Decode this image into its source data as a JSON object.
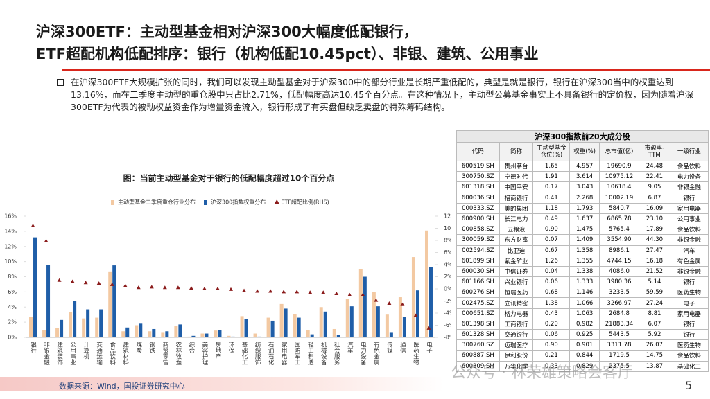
{
  "header": {
    "title_lines": [
      "沪深300ETF：主动型基金相对沪深300大幅度低配银行，",
      "ETF超配机构低配排序：银行（机构低配10.45pct）、非银、建筑、公用事业"
    ]
  },
  "bullet": "在沪深300ETF大规模扩张的同时，我们可以发现主动型基金对于沪深300中的部分行业是长期严重低配的，典型是就是银行，银行在沪深300当中的权重达到13.16%，而在二季度主动型的重仓股中只占比2.71%，低配幅度高达10.45个百分点。在这种情况下，主动型公募基金事实上不具备银行的定价权，因为随着沪深300ETF为代表的被动权益资金作为增量资金流入，银行形成了有买盘但缺乏卖盘的特殊筹码结构。",
  "chart_data": {
    "type": "bar",
    "title": "图：当前主动型基金对于银行的低配幅度超过10个百分点",
    "categories": [
      "银行",
      "非银金融",
      "建筑装饰",
      "公用事业",
      "计算机",
      "交通运输",
      "食品饮料",
      "建筑材料",
      "煤炭",
      "钢铁",
      "商贸零售",
      "农林牧渔",
      "综合",
      "美容护理",
      "房地产",
      "环保",
      "基础化工",
      "纺织服饰",
      "石油石化",
      "家用电器",
      "国防军工",
      "轻工制造",
      "机械设备",
      "社会服务",
      "汽车",
      "电力设备",
      "有色金属",
      "传媒",
      "通信",
      "医药生物",
      "电子"
    ],
    "series": [
      {
        "name": "主动型基金二季度重仓行业分布",
        "color": "#f3c9a2",
        "values": [
          2.7,
          1.0,
          1.2,
          3.3,
          2.5,
          2.6,
          8.7,
          0.8,
          1.6,
          0.8,
          0.6,
          1.5,
          0.1,
          0.5,
          0.9,
          0.2,
          2.8,
          0.5,
          2.6,
          4.4,
          3.1,
          1.0,
          4.0,
          1.1,
          5.1,
          9.0,
          6.0,
          3.0,
          5.3,
          10.6,
          14.1
        ]
      },
      {
        "name": "沪深300指数权重分布",
        "color": "#1f5ea8",
        "values": [
          13.2,
          9.6,
          2.3,
          4.8,
          3.7,
          3.7,
          9.5,
          1.3,
          1.8,
          1.1,
          0.8,
          1.7,
          0.2,
          0.5,
          1.0,
          0.1,
          2.4,
          0.1,
          2.2,
          3.8,
          2.6,
          0.4,
          3.4,
          0.3,
          4.1,
          8.0,
          4.1,
          0.6,
          2.7,
          6.2,
          9.3
        ]
      },
      {
        "name": "ETF超配比例(RHS)",
        "color": "#8b1c1c",
        "axis": "y2",
        "marker": "triangle",
        "values": [
          10.4,
          7.9,
          1.4,
          1.2,
          1.0,
          0.9,
          0.7,
          0.5,
          0.2,
          0.3,
          0.2,
          0.2,
          0.1,
          0.0,
          0.0,
          -0.1,
          -0.3,
          -0.4,
          -0.4,
          -0.5,
          -0.5,
          -0.6,
          -0.6,
          -0.8,
          -1.0,
          -1.0,
          -1.9,
          -2.4,
          -2.6,
          -4.4,
          -6.5
        ]
      }
    ],
    "ylim": [
      0,
      16
    ],
    "yticks": [
      {
        "value": 0,
        "label": "0%"
      },
      {
        "value": 2,
        "label": "2%"
      },
      {
        "value": 4,
        "label": "4%"
      },
      {
        "value": 6,
        "label": "6%"
      },
      {
        "value": 8,
        "label": "8%"
      },
      {
        "value": 10,
        "label": "10%"
      },
      {
        "value": 12,
        "label": "12%"
      },
      {
        "value": 14,
        "label": "14%"
      },
      {
        "value": 16,
        "label": "16%"
      }
    ],
    "y2lim": [
      -8,
      12
    ],
    "y2ticks": [
      {
        "value": -8,
        "label": "-8%"
      },
      {
        "value": -6,
        "label": "-6%"
      },
      {
        "value": -4,
        "label": "-4%"
      },
      {
        "value": -2,
        "label": "-2%"
      },
      {
        "value": 0,
        "label": "0%"
      },
      {
        "value": 2,
        "label": "2%"
      },
      {
        "value": 4,
        "label": "4%"
      },
      {
        "value": 6,
        "label": "6%"
      },
      {
        "value": 8,
        "label": "8%"
      },
      {
        "value": 10,
        "label": "10%"
      },
      {
        "value": 12,
        "label": "12%"
      }
    ],
    "legend": "top",
    "grid": false
  },
  "table": {
    "title": "沪深300指数前20大成分股",
    "header": [
      "代码",
      "简称",
      "主动型基金仓位(%)",
      "权重(%)",
      "总市值(亿)",
      "市盈率-TTM",
      "一级行业"
    ],
    "rows": [
      [
        "600519.SH",
        "贵州茅台",
        "1.65",
        "4.957",
        "19690.9",
        "24.48",
        "食品饮料"
      ],
      [
        "300750.SZ",
        "宁德时代",
        "1.91",
        "3.614",
        "10975.12",
        "22.41",
        "电力设备"
      ],
      [
        "601318.SH",
        "中国平安",
        "0.17",
        "3.043",
        "10618.4",
        "9.05",
        "非银金融"
      ],
      [
        "600036.SH",
        "招商银行",
        "0.41",
        "2.268",
        "10002.19",
        "6.87",
        "银行"
      ],
      [
        "000333.SZ",
        "美的集团",
        "1.18",
        "1.793",
        "5840.7",
        "16.09",
        "家用电器"
      ],
      [
        "600900.SH",
        "长江电力",
        "0.49",
        "1.637",
        "6865.78",
        "23.10",
        "公用事业"
      ],
      [
        "000858.SZ",
        "五粮液",
        "0.90",
        "1.475",
        "5765.4",
        "17.89",
        "食品饮料"
      ],
      [
        "300059.SZ",
        "东方财富",
        "0.07",
        "1.409",
        "3554.90",
        "44.30",
        "非银金融"
      ],
      [
        "002594.SZ",
        "比亚迪",
        "0.67",
        "1.358",
        "8986.1",
        "27.47",
        "汽车"
      ],
      [
        "601899.SH",
        "紫金矿业",
        "1.26",
        "1.355",
        "4744.15",
        "16.18",
        "有色金属"
      ],
      [
        "600030.SH",
        "中信证券",
        "0.04",
        "1.338",
        "4086.0",
        "21.52",
        "非银金融"
      ],
      [
        "601166.SH",
        "兴业银行",
        "0.06",
        "1.333",
        "3980.36",
        "5.14",
        "银行"
      ],
      [
        "600276.SH",
        "恒瑞医药",
        "0.68",
        "1.146",
        "3233.5",
        "59.59",
        "医药生物"
      ],
      [
        "002475.SZ",
        "立讯精密",
        "1.38",
        "1.066",
        "3266.97",
        "27.24",
        "电子"
      ],
      [
        "000651.SZ",
        "格力电器",
        "0.43",
        "1.063",
        "2684.8",
        "8.81",
        "家用电器"
      ],
      [
        "601398.SH",
        "工商银行",
        "0.20",
        "0.982",
        "21883.34",
        "6.07",
        "银行"
      ],
      [
        "601328.SH",
        "交通银行",
        "0.06",
        "0.925",
        "5443.5",
        "5.92",
        "银行"
      ],
      [
        "300760.SZ",
        "迈瑞医疗",
        "0.90",
        "0.901",
        "3311.78",
        "26.07",
        "医药生物"
      ],
      [
        "600887.SH",
        "伊利股份",
        "0.21",
        "0.844",
        "1719.5",
        "14.75",
        "食品饮料"
      ],
      [
        "600309.SH",
        "万华化学",
        "0.33",
        "0.829",
        "2375.5",
        "13.87",
        "基础化工"
      ]
    ]
  },
  "source": "数据来源：Wind，国投证券研究中心",
  "watermark": "公众号 · 林荣雄策略会客厅",
  "page_number": "5"
}
